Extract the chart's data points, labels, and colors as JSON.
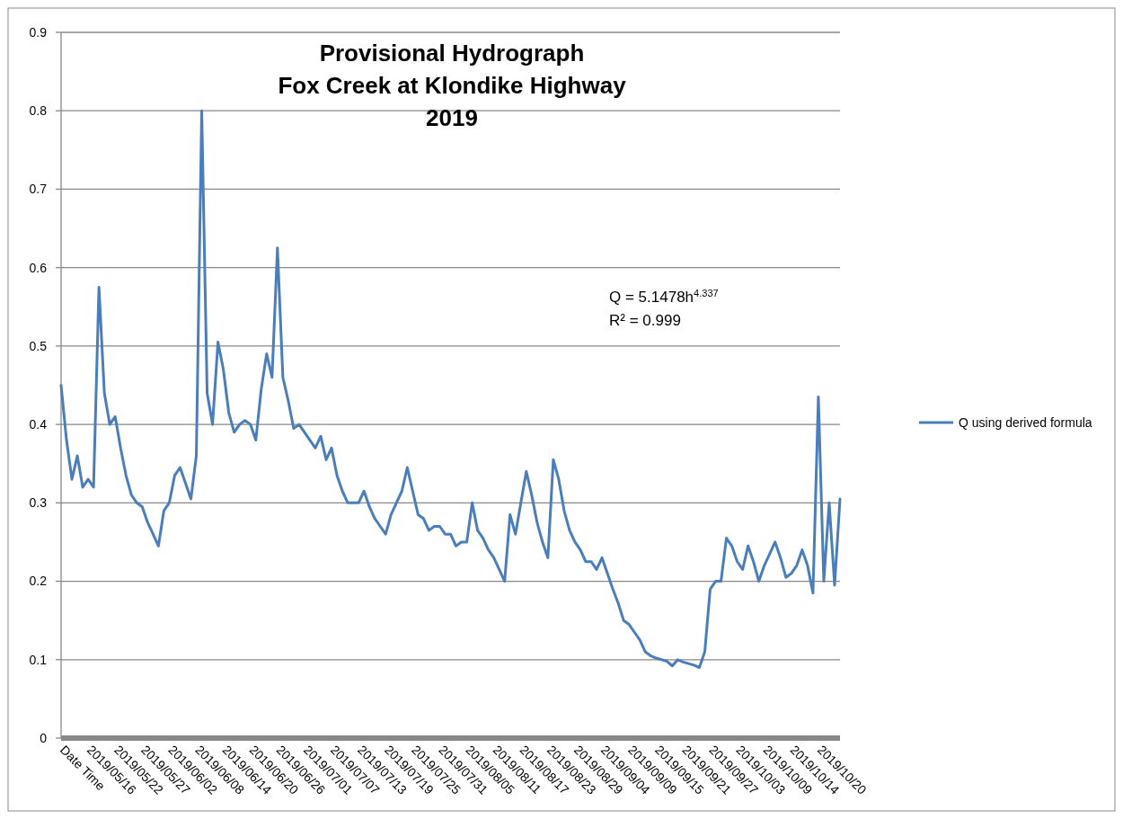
{
  "chart_data": {
    "type": "line",
    "title": "Provisional Hydrograph\nFox Creek at Klondike Highway\n2019",
    "annotations": [
      "Q = 5.1478h$^{4.337}$",
      "R² = 0.999"
    ],
    "categories": [
      "Date Time",
      null,
      null,
      null,
      null,
      "2019/05/16",
      null,
      null,
      null,
      null,
      "2019/05/22",
      null,
      null,
      null,
      null,
      "2019/05/27",
      null,
      null,
      null,
      null,
      "2019/06/02",
      null,
      null,
      null,
      null,
      "2019/06/08",
      null,
      null,
      null,
      null,
      "2019/06/14",
      null,
      null,
      null,
      null,
      "2019/06/20",
      null,
      null,
      null,
      null,
      "2019/06/26",
      null,
      null,
      null,
      null,
      "2019/07/01",
      null,
      null,
      null,
      null,
      "2019/07/07",
      null,
      null,
      null,
      null,
      "2019/07/13",
      null,
      null,
      null,
      null,
      "2019/07/19",
      null,
      null,
      null,
      null,
      "2019/07/25",
      null,
      null,
      null,
      null,
      "2019/07/31",
      null,
      null,
      null,
      null,
      "2019/08/05",
      null,
      null,
      null,
      null,
      "2019/08/11",
      null,
      null,
      null,
      null,
      "2019/08/17",
      null,
      null,
      null,
      null,
      "2019/08/23",
      null,
      null,
      null,
      null,
      "2019/08/29",
      null,
      null,
      null,
      null,
      "2019/09/04",
      null,
      null,
      null,
      null,
      "2019/09/09",
      null,
      null,
      null,
      null,
      "2019/09/15",
      null,
      null,
      null,
      null,
      "2019/09/21",
      null,
      null,
      null,
      null,
      "2019/09/27",
      null,
      null,
      null,
      null,
      "2019/10/03",
      null,
      null,
      null,
      null,
      "2019/10/09",
      null,
      null,
      null,
      null,
      "2019/10/14",
      null,
      null,
      null,
      null,
      "2019/10/20",
      null,
      null,
      null,
      null
    ],
    "series": [
      {
        "name": "Q using derived formula",
        "color": "#4a7ebb",
        "values": [
          0.45,
          0.38,
          0.33,
          0.36,
          0.32,
          0.33,
          0.32,
          0.575,
          0.44,
          0.4,
          0.41,
          0.37,
          0.335,
          0.31,
          0.3,
          0.295,
          0.275,
          0.26,
          0.245,
          0.29,
          0.3,
          0.335,
          0.345,
          0.325,
          0.305,
          0.36,
          0.8,
          0.44,
          0.4,
          0.505,
          0.47,
          0.415,
          0.39,
          0.4,
          0.405,
          0.4,
          0.38,
          0.445,
          0.49,
          0.46,
          0.625,
          0.46,
          0.43,
          0.395,
          0.4,
          0.39,
          0.38,
          0.37,
          0.385,
          0.355,
          0.37,
          0.335,
          0.315,
          0.3,
          0.3,
          0.3,
          0.315,
          0.295,
          0.28,
          0.27,
          0.26,
          0.285,
          0.3,
          0.315,
          0.345,
          0.315,
          0.285,
          0.28,
          0.265,
          0.27,
          0.27,
          0.26,
          0.26,
          0.245,
          0.25,
          0.25,
          0.3,
          0.265,
          0.255,
          0.24,
          0.23,
          0.215,
          0.2,
          0.285,
          0.26,
          0.3,
          0.34,
          0.31,
          0.275,
          0.25,
          0.23,
          0.355,
          0.33,
          0.29,
          0.265,
          0.25,
          0.24,
          0.225,
          0.225,
          0.215,
          0.23,
          0.21,
          0.19,
          0.172,
          0.15,
          0.145,
          0.135,
          0.125,
          0.11,
          0.105,
          0.102,
          0.1,
          0.098,
          0.092,
          0.1,
          0.097,
          0.095,
          0.093,
          0.09,
          0.11,
          0.19,
          0.2,
          0.2,
          0.255,
          0.245,
          0.225,
          0.215,
          0.245,
          0.225,
          0.2,
          0.22,
          0.235,
          0.25,
          0.23,
          0.205,
          0.21,
          0.22,
          0.24,
          0.22,
          0.185,
          0.435,
          0.2,
          0.3,
          0.195,
          0.305
        ]
      }
    ],
    "ylim": [
      0,
      0.9
    ],
    "yticks": [
      0,
      0.1,
      0.2,
      0.3,
      0.4,
      0.5,
      0.6,
      0.7,
      0.8,
      0.9
    ],
    "grid": "y",
    "legend": "right",
    "marker": "none",
    "line_style": "solid"
  }
}
